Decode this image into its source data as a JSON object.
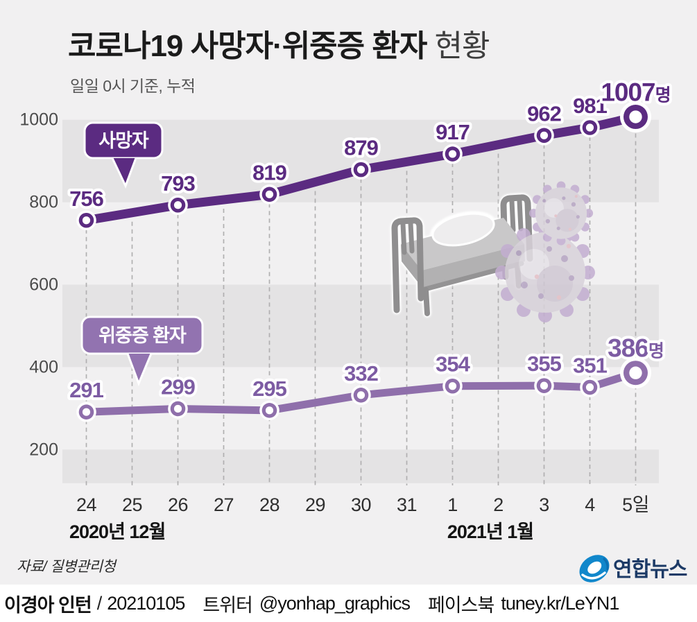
{
  "header": {
    "title_strong": "코로나19 사망자·위중증 환자",
    "title_light": " 현황",
    "subtitle": "일일 0시 기준, 누적"
  },
  "chart_data": {
    "type": "line",
    "title": "코로나19 사망자·위중증 환자 현황",
    "subtitle": "일일 0시 기준, 누적",
    "categories": [
      "24",
      "25",
      "26",
      "27",
      "28",
      "29",
      "30",
      "31",
      "1",
      "2",
      "3",
      "4",
      "5일"
    ],
    "month_labels": [
      "2020년 12월",
      "2021년 1월"
    ],
    "yticks": [
      1000,
      800,
      600,
      400,
      200
    ],
    "ylim": [
      130,
      1060
    ],
    "grid": {
      "stripe_dark": "#e4e3e4",
      "dash_color": "#b0afb0",
      "background": "#f1f0f1"
    },
    "series": [
      {
        "name": "사망자",
        "day_indices": [
          0,
          2,
          4,
          6,
          8,
          10,
          11,
          12
        ],
        "values": [
          756,
          793,
          819,
          879,
          917,
          962,
          981,
          1007
        ],
        "line_color": "#5b2b81",
        "label_color": "#5b2b81",
        "tag_fill": "#5b2b81",
        "last_label_suffix": "명"
      },
      {
        "name": "위중증 환자",
        "day_indices": [
          0,
          2,
          4,
          6,
          8,
          10,
          11,
          12
        ],
        "values": [
          291,
          299,
          295,
          332,
          354,
          355,
          351,
          386
        ],
        "line_color": "#8f6fab",
        "label_color": "#7d5ca3",
        "tag_fill": "#9273b0",
        "last_label_suffix": "명"
      }
    ],
    "illustration_colors": {
      "bed_gray": "#8f8e8f",
      "mattress_gray": "#c9c8c9",
      "virus_purple": "#c3aed1",
      "virus_body": "#d8d2da"
    }
  },
  "source": "자료/ 질병관리청",
  "logo": {
    "text": "연합뉴스",
    "icon_color": "#1187cb",
    "text_color": "#1c3a66"
  },
  "footer": {
    "author": "이경아 인턴",
    "separator": "/",
    "date": "20210105",
    "twitter_label": "트위터",
    "twitter_handle": "@yonhap_graphics",
    "facebook_label": "페이스북",
    "facebook_url": "tuney.kr/LeYN1"
  }
}
